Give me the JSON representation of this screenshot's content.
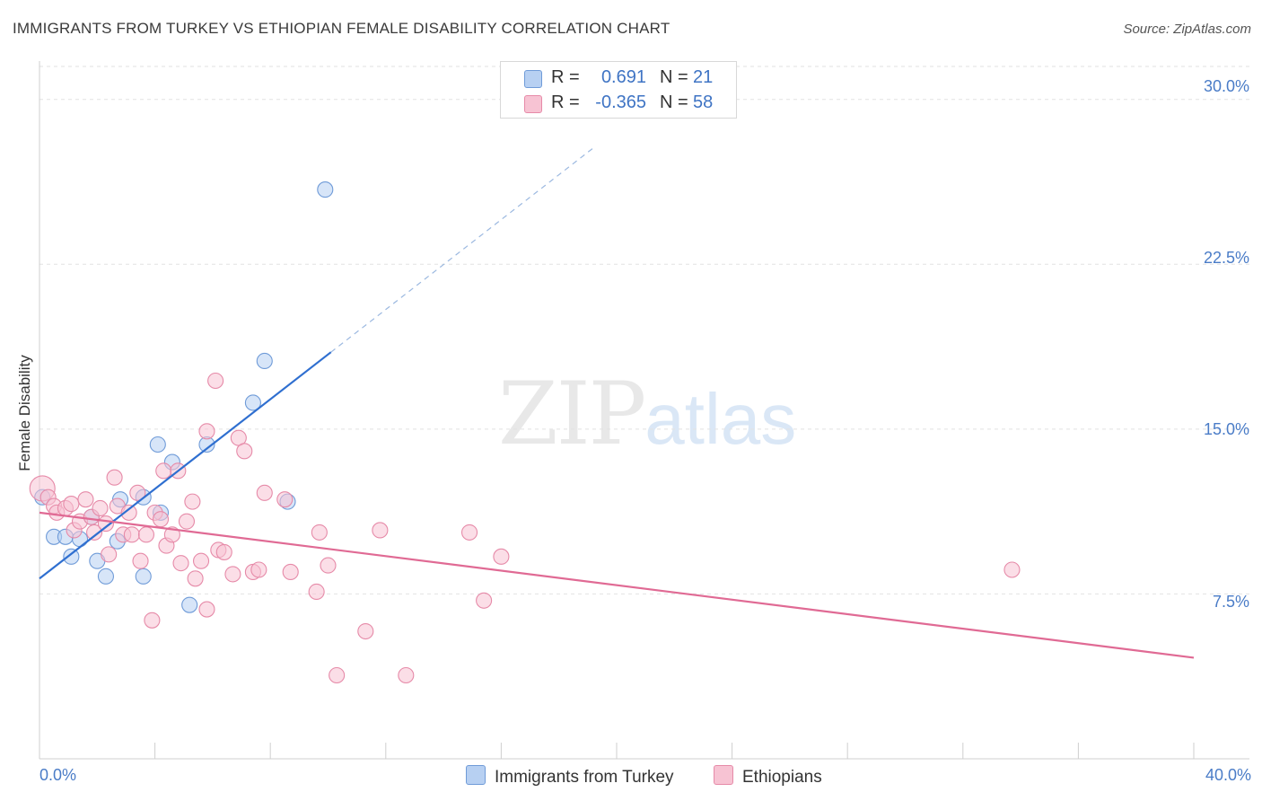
{
  "header": {
    "title": "IMMIGRANTS FROM TURKEY VS ETHIOPIAN FEMALE DISABILITY CORRELATION CHART",
    "source": "Source: ZipAtlas.com"
  },
  "watermark": {
    "zip": "ZIP",
    "atlas": "atlas"
  },
  "colors": {
    "turkey_fill": "#b7d0f2",
    "turkey_stroke": "#6f9bd8",
    "turkey_line": "#2f6fd0",
    "ethiopia_fill": "#f7c3d3",
    "ethiopia_stroke": "#e68aa8",
    "ethiopia_line": "#e06a94",
    "tick_label": "#4a7cc7"
  },
  "stats": {
    "turkey": {
      "r_label": "R =",
      "r_value": "0.691",
      "n_label": "N =",
      "n_value": "21"
    },
    "ethiopia": {
      "r_label": "R =",
      "r_value": "-0.365",
      "n_label": "N =",
      "n_value": "58"
    }
  },
  "legend": {
    "turkey": "Immigrants from Turkey",
    "ethiopia": "Ethiopians"
  },
  "chart_data": {
    "type": "scatter",
    "title": "IMMIGRANTS FROM TURKEY VS ETHIOPIAN FEMALE DISABILITY CORRELATION CHART",
    "xlabel": "",
    "ylabel": "Female Disability",
    "xlim": [
      0,
      40
    ],
    "ylim": [
      0,
      31.5
    ],
    "x_tick_labels": [
      "0.0%",
      "40.0%"
    ],
    "y_ticks": [
      7.5,
      15.0,
      22.5,
      30.0
    ],
    "y_tick_labels": [
      "7.5%",
      "15.0%",
      "22.5%",
      "30.0%"
    ],
    "grid": true,
    "legend_position": "bottom",
    "series": [
      {
        "name": "Immigrants from Turkey",
        "r": 0.691,
        "n": 21,
        "points": [
          [
            0.1,
            11.9
          ],
          [
            0.5,
            10.1
          ],
          [
            0.9,
            10.1
          ],
          [
            1.1,
            9.2
          ],
          [
            1.4,
            10.0
          ],
          [
            1.8,
            11.0
          ],
          [
            2.0,
            9.0
          ],
          [
            2.3,
            8.3
          ],
          [
            2.7,
            9.9
          ],
          [
            3.6,
            8.3
          ],
          [
            2.8,
            11.8
          ],
          [
            3.6,
            11.9
          ],
          [
            4.2,
            11.2
          ],
          [
            4.1,
            14.3
          ],
          [
            4.6,
            13.5
          ],
          [
            5.2,
            7.0
          ],
          [
            5.8,
            14.3
          ],
          [
            7.4,
            16.2
          ],
          [
            7.8,
            18.1
          ],
          [
            8.6,
            11.7
          ],
          [
            9.9,
            25.9
          ]
        ],
        "trend": {
          "x0": 0,
          "y0": 8.2,
          "x1": 10.1,
          "y1": 18.5,
          "dash_x1": 19.2,
          "dash_y1": 27.8
        }
      },
      {
        "name": "Ethiopians",
        "r": -0.365,
        "n": 58,
        "points": [
          [
            0.1,
            12.3
          ],
          [
            0.3,
            11.9
          ],
          [
            0.5,
            11.5
          ],
          [
            0.6,
            11.2
          ],
          [
            0.9,
            11.4
          ],
          [
            1.1,
            11.6
          ],
          [
            1.2,
            10.4
          ],
          [
            1.4,
            10.8
          ],
          [
            1.6,
            11.8
          ],
          [
            1.8,
            11.0
          ],
          [
            1.9,
            10.3
          ],
          [
            2.1,
            11.4
          ],
          [
            2.3,
            10.7
          ],
          [
            2.4,
            9.3
          ],
          [
            2.6,
            12.8
          ],
          [
            2.7,
            11.5
          ],
          [
            2.9,
            10.2
          ],
          [
            3.1,
            11.2
          ],
          [
            3.2,
            10.2
          ],
          [
            3.4,
            12.1
          ],
          [
            3.5,
            9.0
          ],
          [
            3.7,
            10.2
          ],
          [
            3.9,
            6.3
          ],
          [
            4.0,
            11.2
          ],
          [
            4.2,
            10.9
          ],
          [
            4.3,
            13.1
          ],
          [
            4.4,
            9.7
          ],
          [
            4.6,
            10.2
          ],
          [
            4.8,
            13.1
          ],
          [
            4.9,
            8.9
          ],
          [
            5.1,
            10.8
          ],
          [
            5.3,
            11.7
          ],
          [
            5.4,
            8.2
          ],
          [
            5.6,
            9.0
          ],
          [
            5.8,
            6.8
          ],
          [
            5.8,
            14.9
          ],
          [
            6.1,
            17.2
          ],
          [
            6.2,
            9.5
          ],
          [
            6.4,
            9.4
          ],
          [
            6.7,
            8.4
          ],
          [
            6.9,
            14.6
          ],
          [
            7.1,
            14.0
          ],
          [
            7.4,
            8.5
          ],
          [
            7.6,
            8.6
          ],
          [
            7.8,
            12.1
          ],
          [
            8.5,
            11.8
          ],
          [
            8.7,
            8.5
          ],
          [
            9.6,
            7.6
          ],
          [
            9.7,
            10.3
          ],
          [
            10.0,
            8.8
          ],
          [
            10.3,
            3.8
          ],
          [
            11.3,
            5.8
          ],
          [
            11.8,
            10.4
          ],
          [
            12.7,
            3.8
          ],
          [
            14.9,
            10.3
          ],
          [
            15.4,
            7.2
          ],
          [
            16.0,
            9.2
          ],
          [
            33.7,
            8.6
          ]
        ],
        "trend": {
          "x0": 0,
          "y0": 11.2,
          "x1": 40,
          "y1": 4.6
        }
      }
    ]
  }
}
